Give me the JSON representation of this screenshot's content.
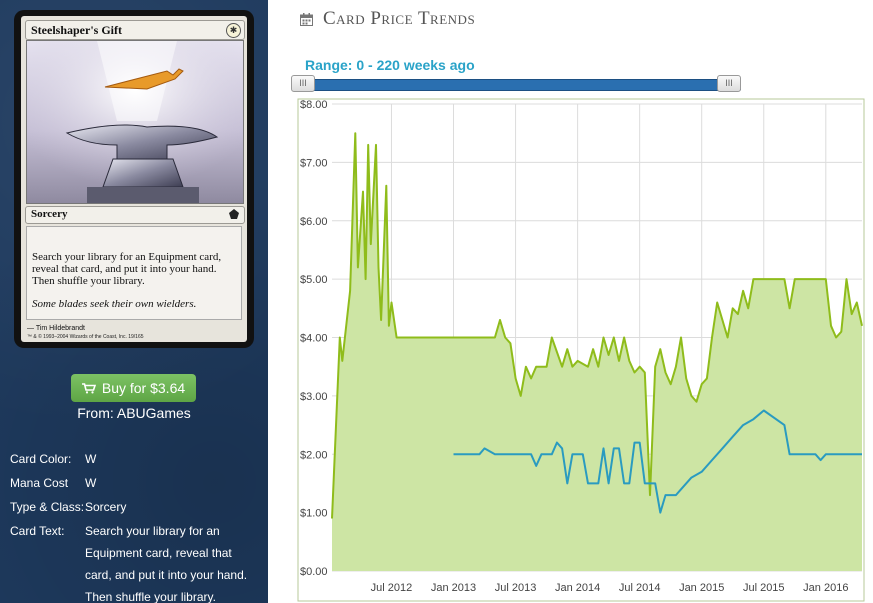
{
  "card": {
    "name": "Steelshaper's Gift",
    "mana_symbol": "✱",
    "type_line": "Sorcery",
    "rules_text": "Search your library for an Equipment card, reveal that card, and put it into your hand. Then shuffle your library.",
    "flavor_text": "Some blades seek their own wielders.",
    "artist": "Tim Hildebrandt",
    "copyright": "™ & © 1993–2004 Wizards of the Coast, Inc. 19/165"
  },
  "buy": {
    "label": "Buy for $3.64",
    "icon": "cart-icon",
    "from": "From: ABUGames",
    "color": "#5ea545"
  },
  "details": [
    {
      "label": "Card Color:",
      "value": "W"
    },
    {
      "label": "Mana Cost",
      "value": "W"
    },
    {
      "label": "Type & Class:",
      "value": "Sorcery"
    }
  ],
  "card_text_label": "Card Text:",
  "card_text_value": "Search your library for an Equipment card, reveal that card, and put it into your hand. Then shuffle your library.",
  "chart_header": {
    "title": "Card Price Trends",
    "icon": "calendar-icon"
  },
  "range": {
    "label": "Range: 0 - 220 weeks ago",
    "handle_glyph": "III"
  },
  "chart_data": {
    "type": "line",
    "title": "",
    "xlabel": "",
    "ylabel": "",
    "ylim": [
      0,
      8
    ],
    "yticks": [
      "$0.00",
      "$1.00",
      "$2.00",
      "$3.00",
      "$4.00",
      "$5.00",
      "$6.00",
      "$7.00",
      "$8.00"
    ],
    "xticks": [
      {
        "label": "Jul 2012",
        "t": 10
      },
      {
        "label": "Jan 2013",
        "t": 22
      },
      {
        "label": "Jul 2013",
        "t": 34
      },
      {
        "label": "Jan 2014",
        "t": 46
      },
      {
        "label": "Jul 2014",
        "t": 58
      },
      {
        "label": "Jan 2015",
        "t": 70
      },
      {
        "label": "Jul 2015",
        "t": 82
      },
      {
        "label": "Jan 2016",
        "t": 94
      }
    ],
    "xlim": [
      -1.5,
      101
    ],
    "grid": true,
    "series": [
      {
        "color": "#8fbc1b",
        "fill": "#cde5a4",
        "points": [
          [
            -1.5,
            0.9
          ],
          [
            0,
            4.0
          ],
          [
            0.5,
            3.6
          ],
          [
            2,
            4.8
          ],
          [
            3,
            7.5
          ],
          [
            3.5,
            5.2
          ],
          [
            4.5,
            6.5
          ],
          [
            5,
            5.0
          ],
          [
            5.5,
            7.3
          ],
          [
            6,
            5.6
          ],
          [
            7,
            7.3
          ],
          [
            7.5,
            5.2
          ],
          [
            8,
            4.3
          ],
          [
            9,
            6.6
          ],
          [
            9.5,
            4.2
          ],
          [
            10,
            4.6
          ],
          [
            11,
            4.0
          ],
          [
            12,
            4.0
          ],
          [
            18,
            4.0
          ],
          [
            24,
            4.0
          ],
          [
            30,
            4.0
          ],
          [
            31,
            4.3
          ],
          [
            32,
            4.0
          ],
          [
            33,
            3.9
          ],
          [
            34,
            3.3
          ],
          [
            35,
            3.0
          ],
          [
            36,
            3.5
          ],
          [
            37,
            3.3
          ],
          [
            38,
            3.5
          ],
          [
            40,
            3.5
          ],
          [
            41,
            4.0
          ],
          [
            43,
            3.5
          ],
          [
            44,
            3.8
          ],
          [
            45,
            3.5
          ],
          [
            46,
            3.6
          ],
          [
            48,
            3.5
          ],
          [
            49,
            3.8
          ],
          [
            50,
            3.5
          ],
          [
            51,
            4.0
          ],
          [
            52,
            3.7
          ],
          [
            53,
            4.0
          ],
          [
            54,
            3.6
          ],
          [
            55,
            4.0
          ],
          [
            56,
            3.6
          ],
          [
            57,
            3.4
          ],
          [
            58,
            3.5
          ],
          [
            59,
            3.4
          ],
          [
            60,
            1.3
          ],
          [
            61,
            3.5
          ],
          [
            62,
            3.8
          ],
          [
            63,
            3.4
          ],
          [
            64,
            3.2
          ],
          [
            65,
            3.5
          ],
          [
            66,
            4.0
          ],
          [
            67,
            3.3
          ],
          [
            68,
            3.0
          ],
          [
            69,
            2.9
          ],
          [
            70,
            3.2
          ],
          [
            71,
            3.3
          ],
          [
            72,
            4.0
          ],
          [
            73,
            4.6
          ],
          [
            74,
            4.3
          ],
          [
            75,
            4.0
          ],
          [
            76,
            4.5
          ],
          [
            77,
            4.4
          ],
          [
            78,
            4.8
          ],
          [
            79,
            4.5
          ],
          [
            80,
            5.0
          ],
          [
            86,
            5.0
          ],
          [
            87,
            4.5
          ],
          [
            88,
            5.0
          ],
          [
            94,
            5.0
          ],
          [
            95,
            4.2
          ],
          [
            96,
            4.0
          ],
          [
            97,
            4.1
          ],
          [
            98,
            5.0
          ],
          [
            99,
            4.4
          ],
          [
            100,
            4.6
          ],
          [
            101,
            4.2
          ]
        ]
      },
      {
        "color": "#2a9bc0",
        "fill": "none",
        "points": [
          [
            22,
            2.0
          ],
          [
            27,
            2.0
          ],
          [
            28,
            2.1
          ],
          [
            30,
            2.0
          ],
          [
            37,
            2.0
          ],
          [
            38,
            1.8
          ],
          [
            39,
            2.0
          ],
          [
            41,
            2.0
          ],
          [
            42,
            2.2
          ],
          [
            43,
            2.1
          ],
          [
            44,
            1.5
          ],
          [
            45,
            2.0
          ],
          [
            47,
            2.0
          ],
          [
            48,
            1.5
          ],
          [
            50,
            1.5
          ],
          [
            51,
            2.1
          ],
          [
            52,
            1.5
          ],
          [
            53,
            2.1
          ],
          [
            54,
            2.1
          ],
          [
            55,
            1.5
          ],
          [
            56,
            1.5
          ],
          [
            57,
            2.2
          ],
          [
            58,
            2.2
          ],
          [
            59,
            1.5
          ],
          [
            61,
            1.5
          ],
          [
            62,
            1.0
          ],
          [
            63,
            1.3
          ],
          [
            65,
            1.3
          ],
          [
            66,
            1.4
          ],
          [
            68,
            1.6
          ],
          [
            70,
            1.7
          ],
          [
            72,
            1.9
          ],
          [
            74,
            2.1
          ],
          [
            76,
            2.3
          ],
          [
            78,
            2.5
          ],
          [
            80,
            2.6
          ],
          [
            82,
            2.75
          ],
          [
            86,
            2.5
          ],
          [
            87,
            2.0
          ],
          [
            90,
            2.0
          ],
          [
            92,
            2.0
          ],
          [
            93,
            1.9
          ],
          [
            94,
            2.0
          ],
          [
            101,
            2.0
          ]
        ]
      }
    ]
  }
}
